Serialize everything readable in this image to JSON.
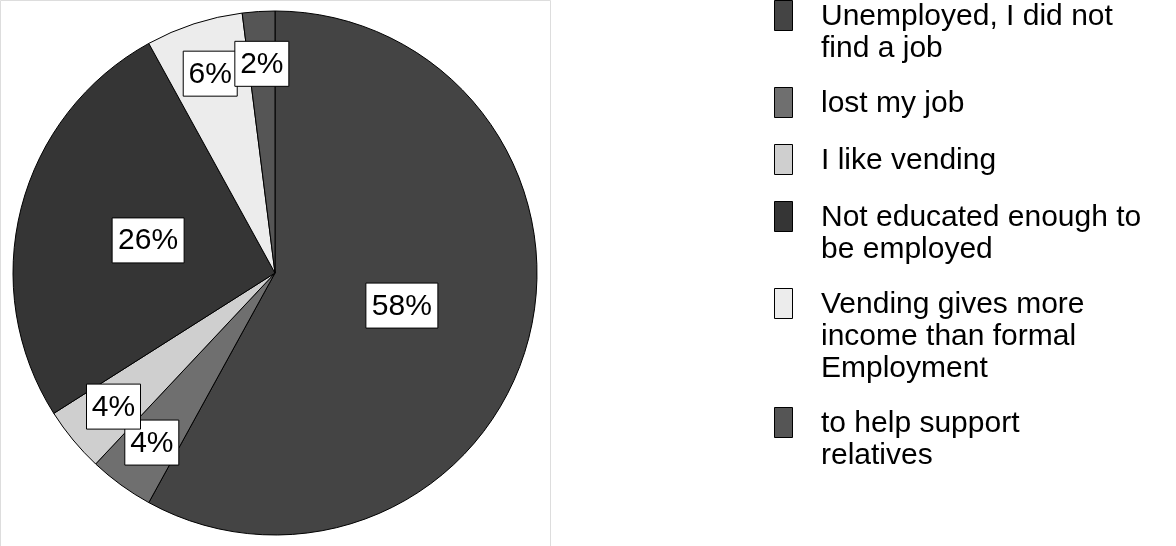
{
  "chart_data": {
    "type": "pie",
    "categories": [
      "Unemployed, I did not find a job",
      "lost my job",
      "I like vending",
      "Not educated enough to be employed",
      "Vending gives more income than formal Employment",
      "to help support relatives"
    ],
    "values": [
      58,
      4,
      4,
      26,
      6,
      2
    ],
    "colors": [
      "#444444",
      "#6f6f6f",
      "#cfcfcf",
      "#353535",
      "#ececec",
      "#555555"
    ],
    "value_labels": [
      "58%",
      "4%",
      "4%",
      "26%",
      "6%",
      "2%"
    ],
    "legend": "right"
  }
}
